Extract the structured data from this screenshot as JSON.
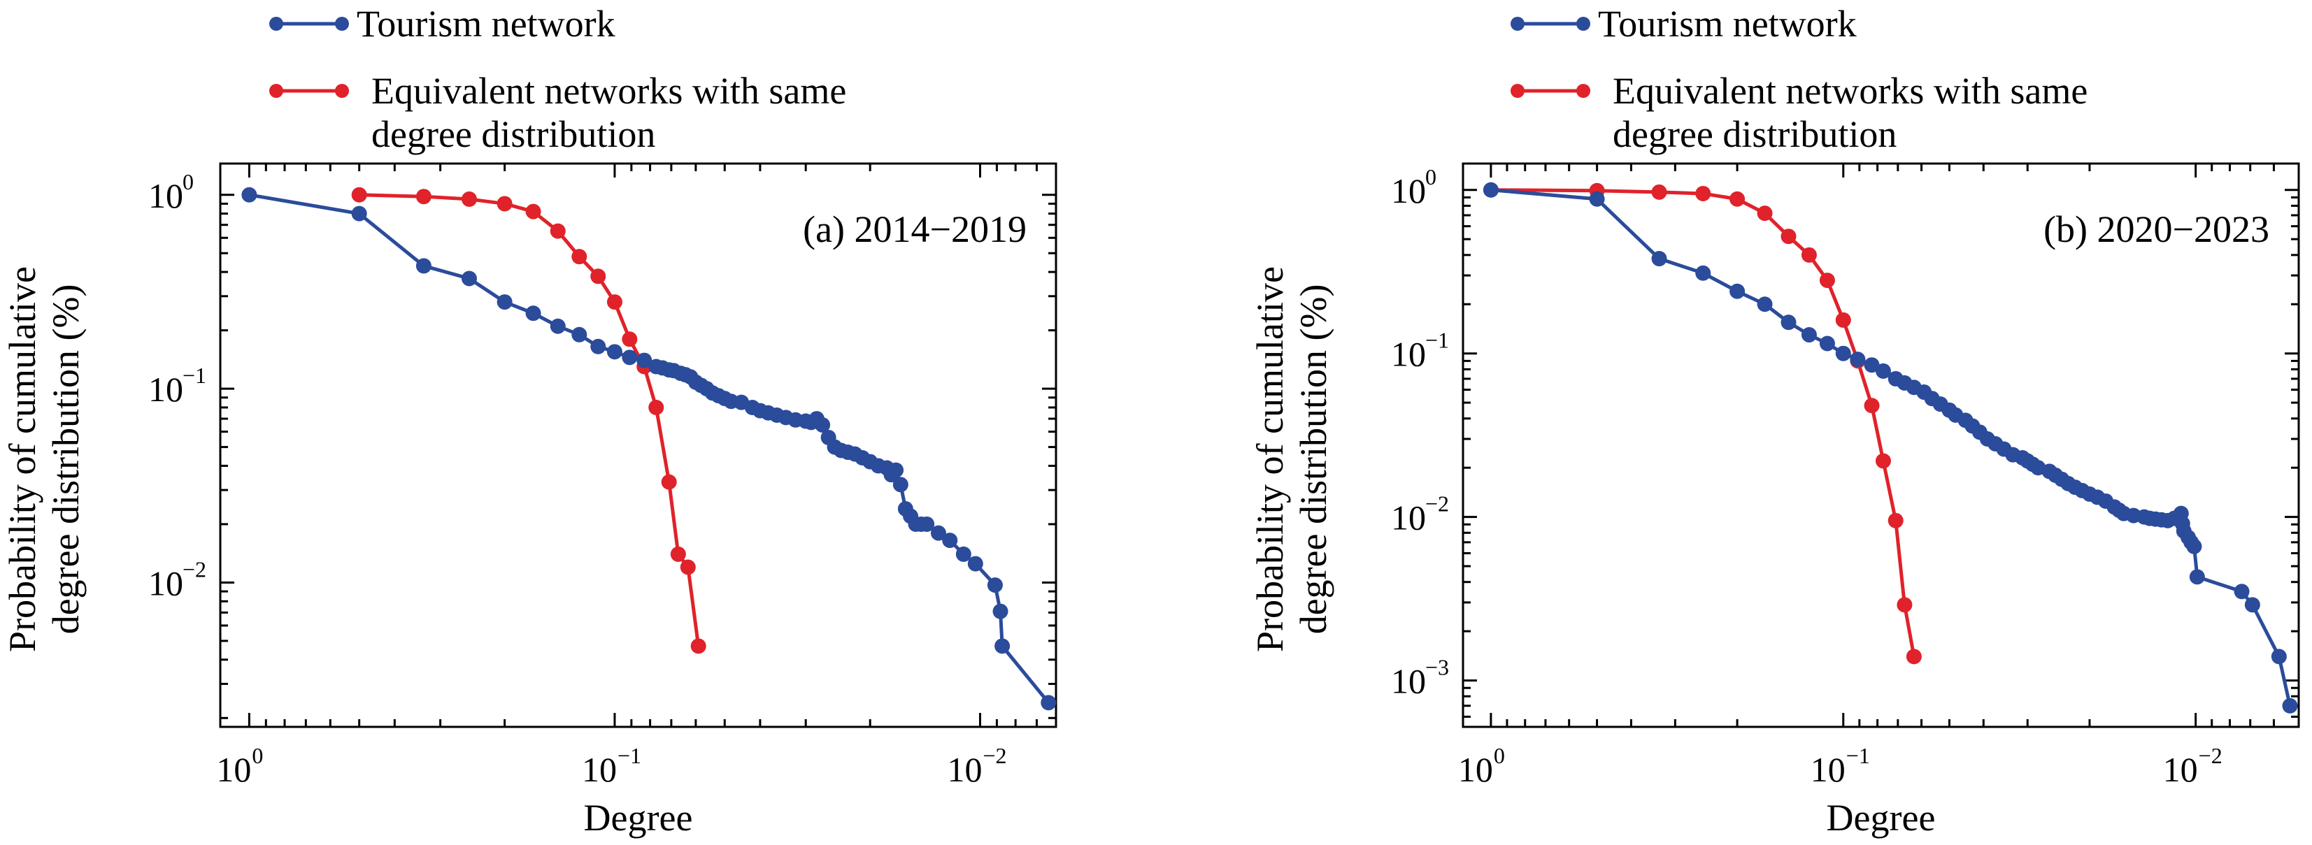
{
  "colors": {
    "tourism": "#2b4b9b",
    "equivalent": "#e0222a",
    "axis": "#000000"
  },
  "legend": {
    "tourism_label": "Tourism network",
    "equivalent_label_line1": "Equivalent networks with same",
    "equivalent_label_line2": "degree distribution"
  },
  "chart_data": [
    {
      "type": "line",
      "panel_label": "(a) 2014−2019",
      "xlabel": "Degree",
      "ylabel_line1": "Probability of cumulative",
      "ylabel_line2": "degree distribution (%)",
      "x_scale": "log",
      "x_reversed": true,
      "xlim": [
        1.2,
        0.0062
      ],
      "y_scale": "log",
      "ylim": [
        0.0018,
        1.45
      ],
      "x_ticks": [
        {
          "base": "10",
          "exp": "0"
        },
        {
          "base": "10",
          "exp": "−1"
        },
        {
          "base": "10",
          "exp": "−2"
        }
      ],
      "y_ticks": [
        {
          "base": "10",
          "exp": "0"
        },
        {
          "base": "10",
          "exp": "−1"
        },
        {
          "base": "10",
          "exp": "−2"
        }
      ],
      "series": [
        {
          "name": "Tourism network",
          "x": [
            1.0,
            0.5,
            0.333,
            0.25,
            0.2,
            0.167,
            0.143,
            0.125,
            0.111,
            0.1,
            0.091,
            0.083,
            0.077,
            0.074,
            0.071,
            0.069,
            0.066,
            0.064,
            0.062,
            0.06,
            0.058,
            0.056,
            0.054,
            0.052,
            0.05,
            0.048,
            0.045,
            0.042,
            0.04,
            0.038,
            0.036,
            0.034,
            0.032,
            0.03,
            0.029,
            0.028,
            0.027,
            0.026,
            0.025,
            0.024,
            0.023,
            0.022,
            0.021,
            0.02,
            0.019,
            0.018,
            0.0175,
            0.017,
            0.0165,
            0.016,
            0.0155,
            0.015,
            0.0145,
            0.014,
            0.013,
            0.0121,
            0.0111,
            0.0103,
            0.0091,
            0.0088,
            0.0087,
            0.0065
          ],
          "y": [
            1.0,
            0.8,
            0.43,
            0.37,
            0.28,
            0.245,
            0.21,
            0.19,
            0.165,
            0.155,
            0.145,
            0.14,
            0.13,
            0.128,
            0.125,
            0.124,
            0.12,
            0.118,
            0.115,
            0.108,
            0.104,
            0.1,
            0.095,
            0.092,
            0.089,
            0.086,
            0.085,
            0.08,
            0.077,
            0.075,
            0.073,
            0.071,
            0.069,
            0.068,
            0.067,
            0.07,
            0.065,
            0.056,
            0.05,
            0.048,
            0.047,
            0.046,
            0.044,
            0.042,
            0.04,
            0.039,
            0.036,
            0.038,
            0.032,
            0.024,
            0.022,
            0.02,
            0.02,
            0.02,
            0.018,
            0.0165,
            0.014,
            0.0125,
            0.0097,
            0.0071,
            0.0047,
            0.0024
          ]
        },
        {
          "name": "Equivalent networks with same degree distribution",
          "x": [
            0.5,
            0.333,
            0.25,
            0.2,
            0.167,
            0.143,
            0.125,
            0.111,
            0.1,
            0.091,
            0.083,
            0.077,
            0.071,
            0.067,
            0.063,
            0.059
          ],
          "y": [
            1.0,
            0.98,
            0.95,
            0.9,
            0.82,
            0.65,
            0.48,
            0.38,
            0.28,
            0.18,
            0.13,
            0.08,
            0.033,
            0.014,
            0.012,
            0.0047
          ]
        }
      ]
    },
    {
      "type": "line",
      "panel_label": "(b) 2020−2023",
      "xlabel": "Degree",
      "ylabel_line1": "Probability of cumulative",
      "ylabel_line2": "degree distribution (%)",
      "x_scale": "log",
      "x_reversed": true,
      "xlim": [
        1.2,
        0.0051
      ],
      "y_scale": "log",
      "ylim": [
        0.00052,
        1.45
      ],
      "x_ticks": [
        {
          "base": "10",
          "exp": "0"
        },
        {
          "base": "10",
          "exp": "−1"
        },
        {
          "base": "10",
          "exp": "−2"
        }
      ],
      "y_ticks": [
        {
          "base": "10",
          "exp": "0"
        },
        {
          "base": "10",
          "exp": "−1"
        },
        {
          "base": "10",
          "exp": "−2"
        },
        {
          "base": "10",
          "exp": "−3"
        }
      ],
      "series": [
        {
          "name": "Tourism network",
          "x": [
            1.0,
            0.5,
            0.333,
            0.25,
            0.2,
            0.167,
            0.143,
            0.125,
            0.111,
            0.1,
            0.091,
            0.083,
            0.077,
            0.071,
            0.067,
            0.063,
            0.059,
            0.056,
            0.053,
            0.05,
            0.048,
            0.045,
            0.043,
            0.041,
            0.039,
            0.037,
            0.035,
            0.033,
            0.031,
            0.03,
            0.029,
            0.028,
            0.026,
            0.025,
            0.024,
            0.023,
            0.022,
            0.021,
            0.02,
            0.019,
            0.018,
            0.017,
            0.0165,
            0.016,
            0.015,
            0.014,
            0.0135,
            0.013,
            0.0125,
            0.012,
            0.0115,
            0.011,
            0.0109,
            0.0108,
            0.0105,
            0.0103,
            0.0101,
            0.0099,
            0.0074,
            0.0069,
            0.0058,
            0.0054
          ],
          "y": [
            1.0,
            0.88,
            0.38,
            0.31,
            0.24,
            0.2,
            0.155,
            0.13,
            0.115,
            0.1,
            0.092,
            0.085,
            0.078,
            0.07,
            0.066,
            0.062,
            0.058,
            0.053,
            0.049,
            0.045,
            0.042,
            0.039,
            0.036,
            0.033,
            0.03,
            0.028,
            0.026,
            0.024,
            0.023,
            0.022,
            0.021,
            0.02,
            0.019,
            0.018,
            0.017,
            0.016,
            0.0152,
            0.0145,
            0.0138,
            0.0132,
            0.0125,
            0.0115,
            0.011,
            0.0105,
            0.0102,
            0.01,
            0.0098,
            0.0097,
            0.0096,
            0.0095,
            0.0098,
            0.0105,
            0.0091,
            0.0082,
            0.0075,
            0.007,
            0.0066,
            0.0043,
            0.0035,
            0.0029,
            0.0014,
            0.0007
          ]
        },
        {
          "name": "Equivalent networks with same degree distribution",
          "x": [
            1.0,
            0.5,
            0.333,
            0.25,
            0.2,
            0.167,
            0.143,
            0.125,
            0.111,
            0.1,
            0.091,
            0.083,
            0.077,
            0.071,
            0.067,
            0.063
          ],
          "y": [
            1.0,
            0.99,
            0.97,
            0.95,
            0.88,
            0.72,
            0.52,
            0.4,
            0.28,
            0.16,
            0.09,
            0.048,
            0.022,
            0.0095,
            0.0029,
            0.0014
          ]
        }
      ]
    }
  ]
}
